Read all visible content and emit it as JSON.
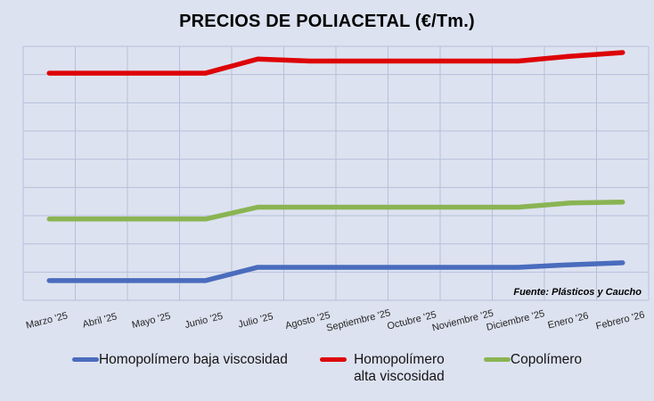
{
  "chart_data": {
    "type": "line",
    "title": "PRECIOS DE POLIACETAL (€/Tm.)",
    "source_note": "Fuente: Plásticos y Caucho",
    "categories": [
      "Marzo '25",
      "Abril '25",
      "Mayo '25",
      "Junio '25",
      "Julio '25",
      "Agosto '25",
      "Septiembre '25",
      "Octubre '25",
      "Noviembre '25",
      "Diciembre '25",
      "Enero '26",
      "Febrero '26"
    ],
    "series": [
      {
        "name": "Homopolímero baja viscosidad",
        "color": "#4a6cbd",
        "values": [
          0.7,
          0.7,
          0.7,
          0.7,
          1.17,
          1.17,
          1.17,
          1.17,
          1.17,
          1.17,
          1.26,
          1.33
        ]
      },
      {
        "name": "Homopolímero alta viscosidad",
        "color": "#dd0407",
        "values": [
          8.05,
          8.05,
          8.05,
          8.05,
          8.55,
          8.48,
          8.48,
          8.48,
          8.48,
          8.48,
          8.65,
          8.78
        ]
      },
      {
        "name": "Copolímero",
        "color": "#8ab453",
        "values": [
          2.88,
          2.88,
          2.88,
          2.88,
          3.3,
          3.3,
          3.3,
          3.3,
          3.3,
          3.3,
          3.45,
          3.48
        ]
      }
    ],
    "xlabel": "",
    "ylabel": "",
    "y_axis": {
      "min": 0,
      "max": 9,
      "gridline_step": 1,
      "tick_labels_visible": false,
      "units_note": "no numeric y labels shown; values expressed in gridline units from bottom axis"
    },
    "grid": true,
    "legend_position": "bottom"
  },
  "colors": {
    "background": "#dde2f0",
    "gridline": "#b6c0dc",
    "title_text": "#000000",
    "label_text": "#262626"
  }
}
